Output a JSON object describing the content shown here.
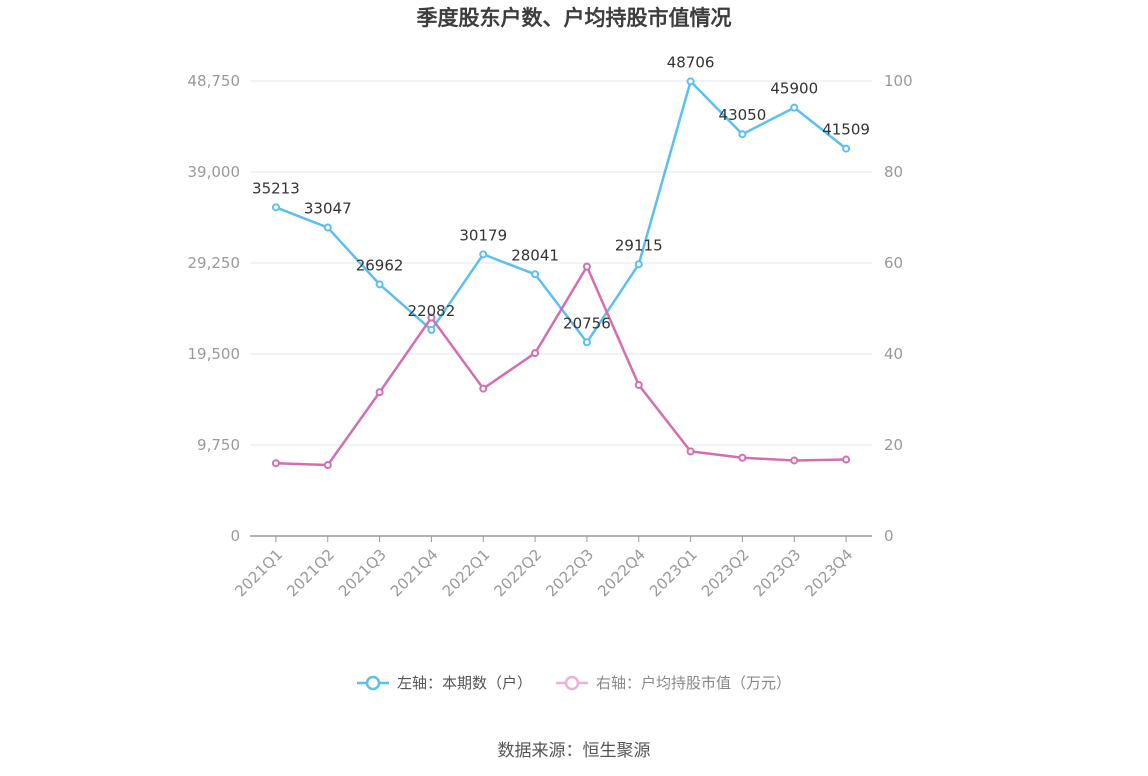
{
  "title": "季度股东户数、户均持股市值情况",
  "source": "数据来源：恒生聚源",
  "legend": {
    "left_label": "左轴：本期数（户）",
    "right_label": "右轴：户均持股市值（万元）"
  },
  "colors": {
    "left": "#5bc0f0",
    "right": "#d36fb1",
    "grid": "#dfe8f2",
    "axis": "#999999",
    "tick": "#999999",
    "label": "#333333"
  },
  "chart_data": {
    "type": "line",
    "title": "季度股东户数、户均持股市值情况",
    "categories": [
      "2021Q1",
      "2021Q2",
      "2021Q3",
      "2021Q4",
      "2022Q1",
      "2022Q2",
      "2022Q3",
      "2022Q4",
      "2023Q1",
      "2023Q2",
      "2023Q3",
      "2023Q4"
    ],
    "left_axis": {
      "min": 0,
      "max": 48750,
      "ticks": [
        "0",
        "9,750",
        "19,500",
        "29,250",
        "39,000",
        "48,750"
      ],
      "tick_values": [
        0,
        9750,
        19500,
        29250,
        39000,
        48750
      ]
    },
    "right_axis": {
      "min": 0,
      "max": 100,
      "ticks": [
        "0",
        "20",
        "40",
        "60",
        "80",
        "100"
      ],
      "tick_values": [
        0,
        20,
        40,
        60,
        80,
        100
      ]
    },
    "series": [
      {
        "name": "左轴：本期数（户）",
        "axis": "left",
        "values": [
          35213,
          33047,
          26962,
          22082,
          30179,
          28041,
          20756,
          29115,
          48706,
          43050,
          45900,
          41509
        ],
        "labels": [
          "35213",
          "33047",
          "26962",
          "22082",
          "30179",
          "28041",
          "20756",
          "29115",
          "48706",
          "43050",
          "45900",
          "41509"
        ]
      },
      {
        "name": "右轴：户均持股市值（万元）",
        "axis": "right",
        "values": [
          16.0,
          15.6,
          31.6,
          48.0,
          32.4,
          40.2,
          59.2,
          33.2,
          18.6,
          17.2,
          16.6,
          16.8
        ]
      }
    ],
    "grid": true,
    "legend_position": "bottom"
  }
}
